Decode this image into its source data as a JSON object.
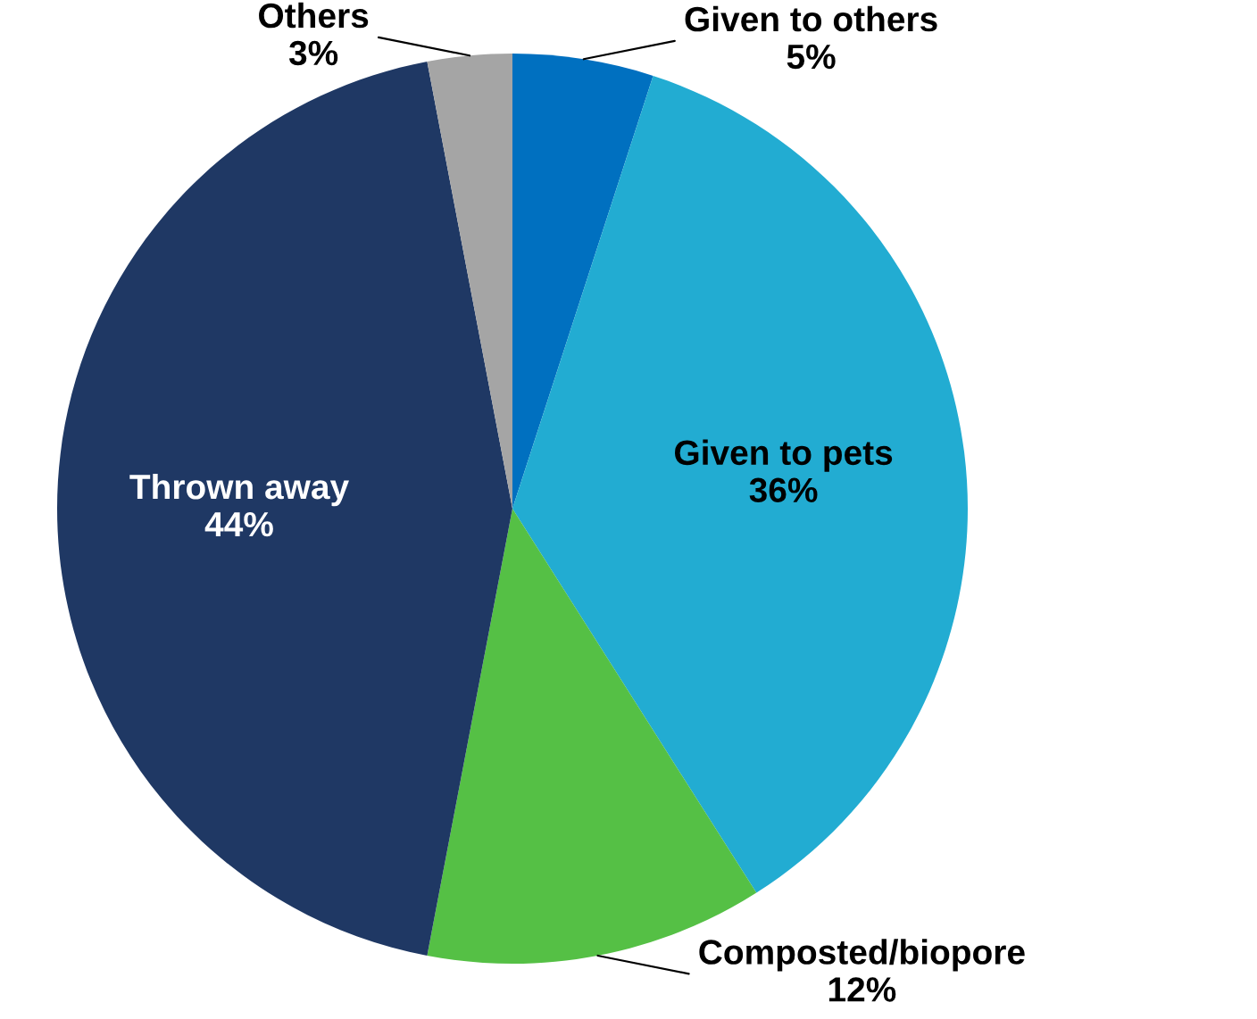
{
  "chart_data": {
    "type": "pie",
    "categories": [
      "Given to others",
      "Given to pets",
      "Composted/biopore",
      "Thrown away",
      "Others"
    ],
    "values": [
      5,
      36,
      12,
      44,
      3
    ],
    "colors": [
      "#0070c0",
      "#22acd2",
      "#55c045",
      "#1f3864",
      "#a5a5a5"
    ],
    "value_labels": [
      "5%",
      "36%",
      "12%",
      "44%",
      "3%"
    ],
    "legend": false
  }
}
